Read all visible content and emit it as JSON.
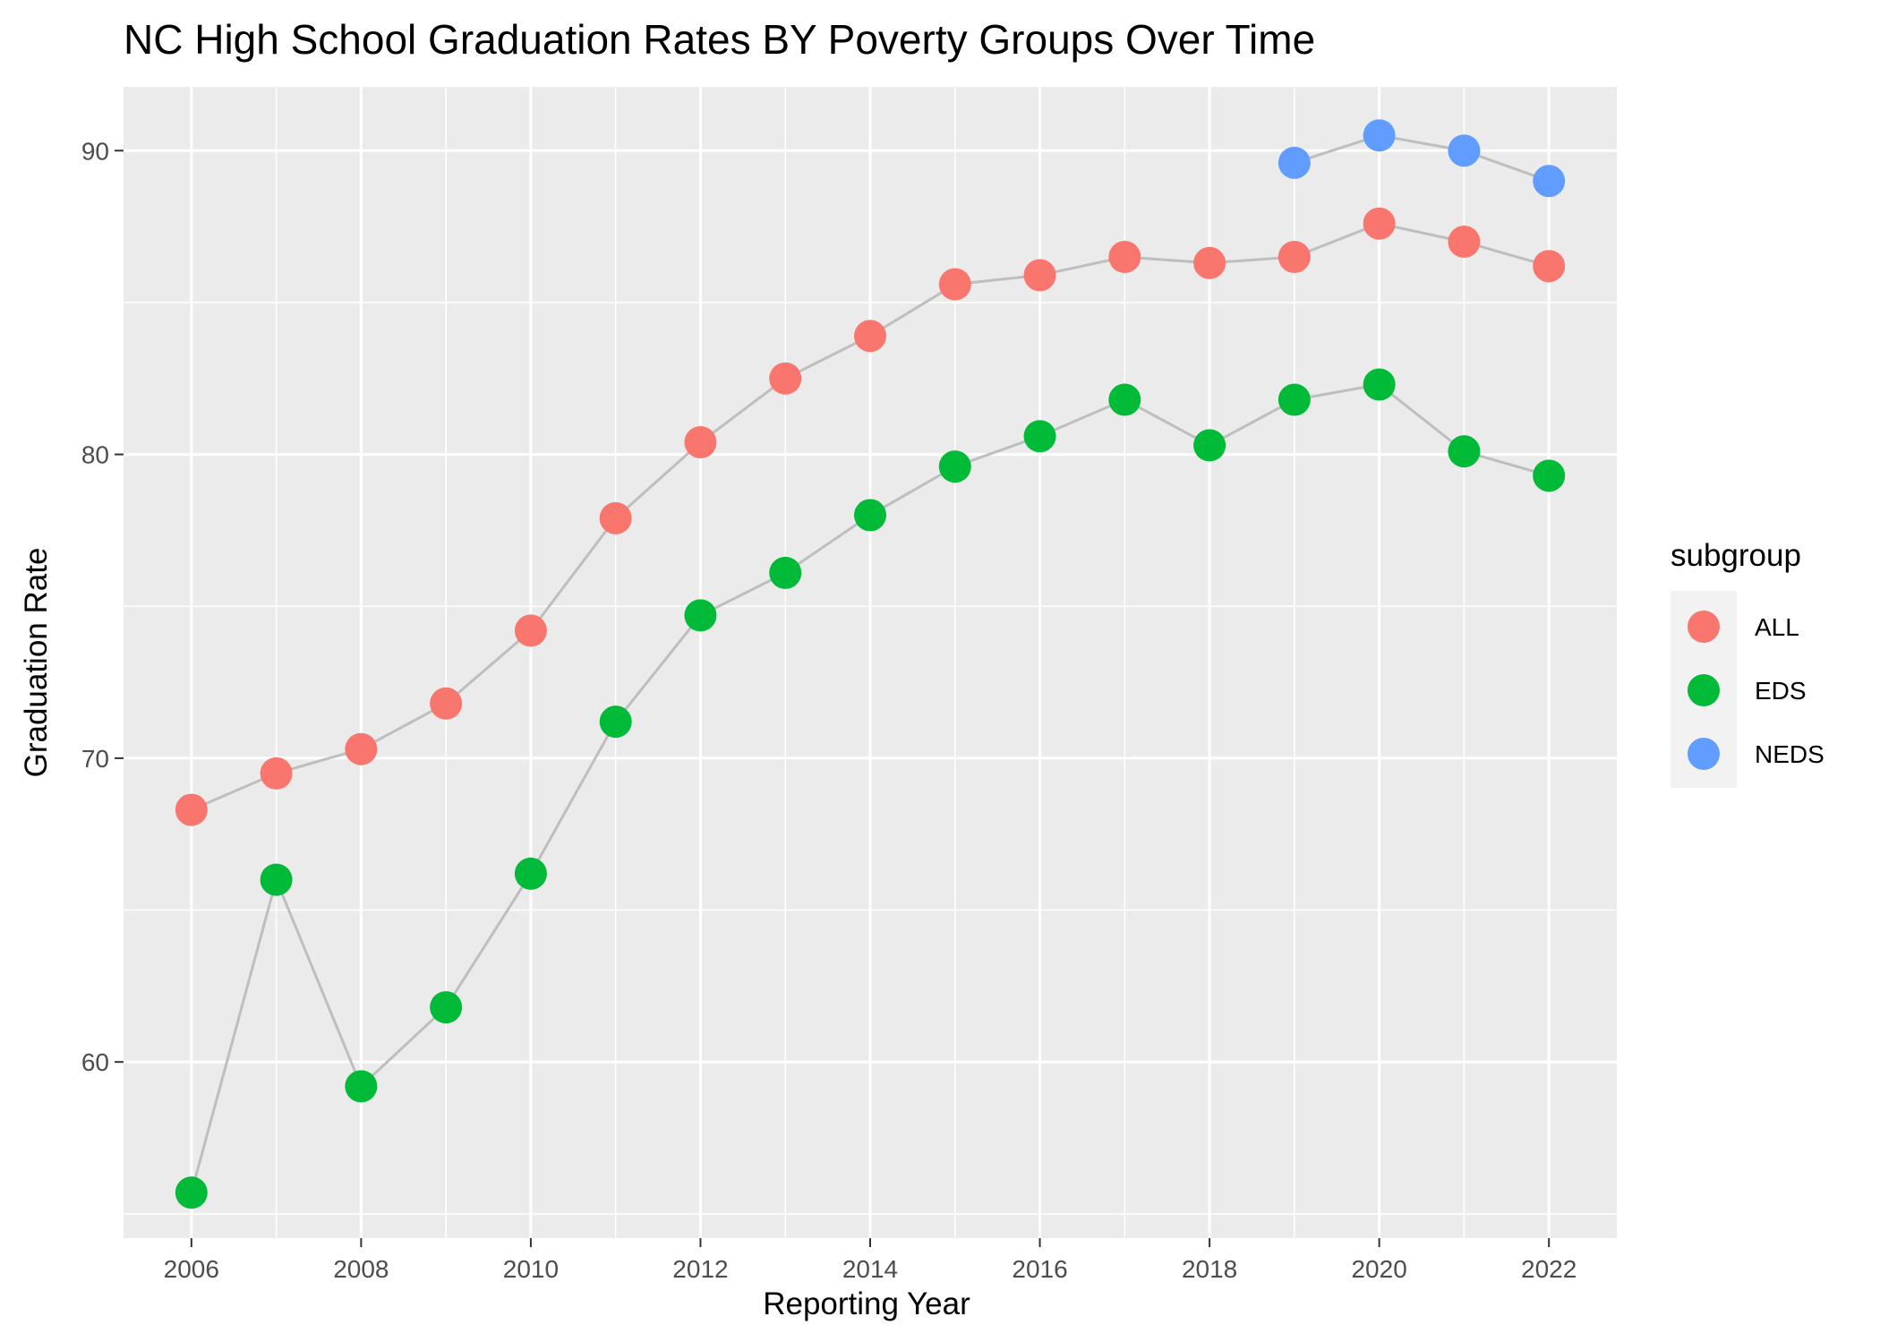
{
  "chart_data": {
    "type": "scatter",
    "title": "NC High School Graduation Rates BY Poverty Groups Over Time",
    "xlabel": "Reporting Year",
    "ylabel": "Graduation Rate",
    "xlim": [
      2005.2,
      2022.8
    ],
    "ylim": [
      54.2,
      92.1
    ],
    "x_ticks": [
      2006,
      2008,
      2010,
      2012,
      2014,
      2016,
      2018,
      2020,
      2022
    ],
    "y_ticks": [
      60,
      70,
      80,
      90
    ],
    "grid": true,
    "background": "#ebebeb",
    "line_color": "#bebebe",
    "legend": {
      "title": "subgroup",
      "position": "right"
    },
    "series": [
      {
        "name": "ALL",
        "color": "#f8766d",
        "x": [
          2006,
          2007,
          2008,
          2009,
          2010,
          2011,
          2012,
          2013,
          2014,
          2015,
          2016,
          2017,
          2018,
          2019,
          2020,
          2021,
          2022
        ],
        "y": [
          68.3,
          69.5,
          70.3,
          71.8,
          74.2,
          77.9,
          80.4,
          82.5,
          83.9,
          85.6,
          85.9,
          86.5,
          86.3,
          86.5,
          87.6,
          87.0,
          86.2
        ]
      },
      {
        "name": "EDS",
        "color": "#00ba38",
        "x": [
          2006,
          2007,
          2008,
          2009,
          2010,
          2011,
          2012,
          2013,
          2014,
          2015,
          2016,
          2017,
          2018,
          2019,
          2020,
          2021,
          2022
        ],
        "y": [
          55.7,
          66.0,
          59.2,
          61.8,
          66.2,
          71.2,
          74.7,
          76.1,
          78.0,
          79.6,
          80.6,
          81.8,
          80.3,
          81.8,
          82.3,
          80.1,
          79.3
        ]
      },
      {
        "name": "NEDS",
        "color": "#619cff",
        "x": [
          2019,
          2020,
          2021,
          2022
        ],
        "y": [
          89.6,
          90.5,
          90.0,
          89.0
        ]
      }
    ]
  }
}
